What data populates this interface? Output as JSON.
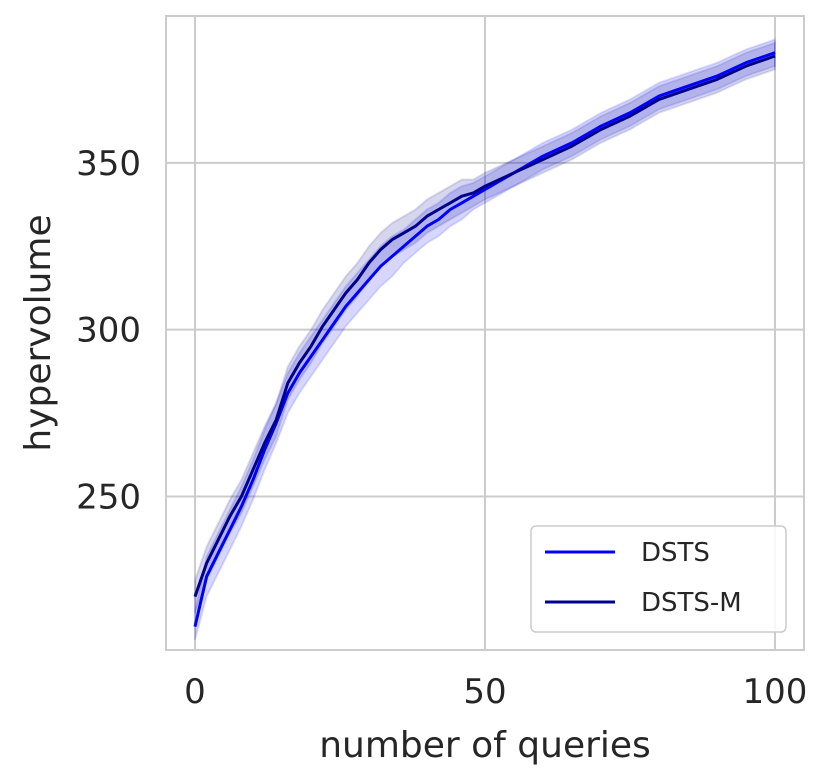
{
  "chart_data": {
    "type": "line",
    "title": "",
    "xlabel": "number of queries",
    "ylabel": "hypervolume",
    "xlim": [
      -5,
      105
    ],
    "ylim": [
      204,
      394
    ],
    "xticks": [
      0,
      50,
      100
    ],
    "yticks": [
      250,
      300,
      350
    ],
    "xtick_labels": [
      "0",
      "50",
      "100"
    ],
    "ytick_labels": [
      "250",
      "300",
      "350"
    ],
    "grid": true,
    "legend_position": "lower-right",
    "series": [
      {
        "name": "DSTS",
        "color": "#0000ff",
        "x": [
          0,
          2,
          4,
          6,
          8,
          10,
          12,
          14,
          16,
          18,
          20,
          22,
          24,
          26,
          28,
          30,
          32,
          34,
          36,
          38,
          40,
          42,
          44,
          46,
          48,
          50,
          55,
          60,
          65,
          70,
          75,
          80,
          85,
          90,
          95,
          100
        ],
        "y": [
          211,
          226,
          233,
          240,
          247,
          255,
          264,
          272,
          281,
          287,
          292,
          297,
          302,
          307,
          311,
          315,
          319,
          322,
          325,
          328,
          331,
          333,
          336,
          338,
          340,
          342,
          347,
          352,
          356,
          361,
          365,
          370,
          373,
          376,
          380,
          383
        ],
        "band_low": [
          207,
          220,
          227,
          234,
          241,
          249,
          258,
          266,
          275,
          281,
          286,
          291,
          296,
          301,
          305,
          309,
          313,
          316,
          320,
          323,
          326,
          328,
          331,
          333,
          336,
          338,
          343,
          348,
          352,
          357,
          361,
          366,
          369,
          372,
          376,
          379
        ],
        "band_high": [
          216,
          232,
          239,
          246,
          253,
          261,
          270,
          278,
          287,
          293,
          298,
          303,
          308,
          313,
          317,
          321,
          325,
          328,
          330,
          333,
          336,
          338,
          341,
          343,
          344,
          346,
          351,
          356,
          360,
          365,
          369,
          374,
          377,
          380,
          384,
          387
        ]
      },
      {
        "name": "DSTS-M",
        "color": "#00008b",
        "x": [
          0,
          2,
          4,
          6,
          8,
          10,
          12,
          14,
          16,
          18,
          20,
          22,
          24,
          26,
          28,
          30,
          32,
          34,
          36,
          38,
          40,
          42,
          44,
          46,
          48,
          50,
          55,
          60,
          65,
          70,
          75,
          80,
          85,
          90,
          95,
          100
        ],
        "y": [
          220,
          230,
          237,
          244,
          250,
          258,
          266,
          273,
          284,
          290,
          295,
          301,
          306,
          311,
          315,
          320,
          324,
          327,
          329,
          331,
          334,
          336,
          338,
          340,
          341,
          343,
          347,
          351,
          355,
          360,
          364,
          369,
          372,
          375,
          379,
          382
        ],
        "band_low": [
          215,
          225,
          232,
          239,
          245,
          253,
          261,
          268,
          279,
          285,
          290,
          296,
          301,
          306,
          310,
          315,
          319,
          322,
          324,
          326,
          329,
          331,
          333,
          335,
          337,
          339,
          343,
          347,
          351,
          356,
          360,
          365,
          368,
          371,
          375,
          378
        ],
        "band_high": [
          225,
          235,
          242,
          249,
          255,
          263,
          271,
          278,
          289,
          295,
          300,
          306,
          311,
          316,
          320,
          325,
          329,
          332,
          334,
          336,
          339,
          341,
          343,
          345,
          345,
          347,
          351,
          355,
          359,
          364,
          368,
          373,
          376,
          379,
          383,
          386
        ]
      }
    ]
  }
}
